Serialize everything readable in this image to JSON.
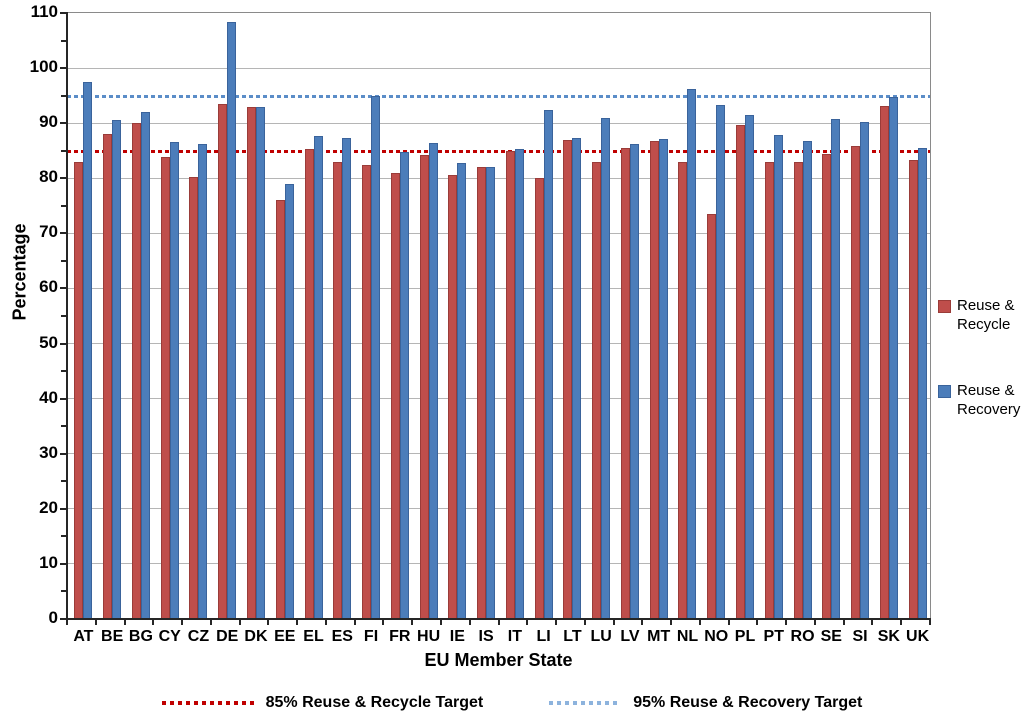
{
  "chart_data": {
    "type": "bar",
    "title": "",
    "ylabel": "Percentage",
    "xlabel": "EU Member State",
    "ylim": [
      0,
      110
    ],
    "ytick_major": 10,
    "ytick_minor": 5,
    "grid": "horizontal major gridlines, light gray",
    "legend_position": "right",
    "categories": [
      "AT",
      "BE",
      "BG",
      "CY",
      "CZ",
      "DE",
      "DK",
      "EE",
      "EL",
      "ES",
      "FI",
      "FR",
      "HU",
      "IE",
      "IS",
      "IT",
      "LI",
      "LT",
      "LU",
      "LV",
      "MT",
      "NL",
      "NO",
      "PL",
      "PT",
      "RO",
      "SE",
      "SI",
      "SK",
      "UK"
    ],
    "series": [
      {
        "name": "Reuse & Recycle",
        "color": "#BF4E4B",
        "values": [
          83.0,
          88.0,
          90.0,
          83.8,
          80.2,
          93.4,
          93.0,
          76.1,
          85.4,
          82.9,
          82.5,
          81.0,
          84.3,
          80.6,
          82.0,
          85.0,
          80.1,
          87.0,
          82.9,
          85.5,
          86.8,
          83.0,
          73.5,
          89.6,
          82.9,
          82.9,
          84.4,
          85.9,
          93.1,
          83.4
        ]
      },
      {
        "name": "Reuse & Recovery",
        "color": "#4C7DBA",
        "values": [
          97.5,
          90.5,
          92.1,
          86.6,
          86.2,
          108.4,
          92.9,
          79.0,
          87.7,
          87.3,
          95.0,
          84.8,
          86.4,
          82.8,
          82.1,
          85.3,
          92.4,
          87.4,
          90.9,
          86.3,
          87.1,
          96.2,
          93.3,
          91.5,
          87.9,
          86.8,
          90.8,
          90.3,
          94.8,
          85.5
        ]
      }
    ],
    "target_lines": [
      {
        "label": "85% Reuse & Recycle Target",
        "value": 85,
        "color": "#C00000"
      },
      {
        "label": "95% Reuse & Recovery Target",
        "value": 95,
        "color": "#5B8DC8"
      }
    ]
  }
}
